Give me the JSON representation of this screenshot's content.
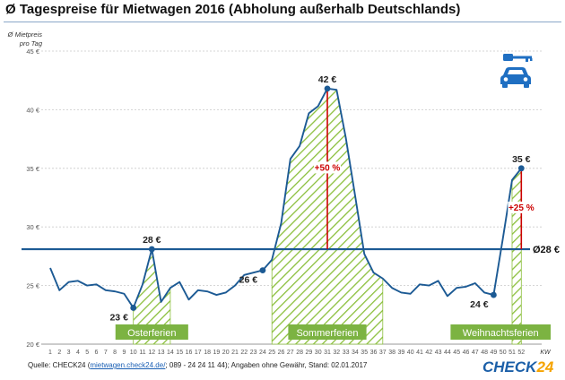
{
  "title": "Ø Tagespreise für Mietwagen 2016 (Abholung außerhalb Deutschlands)",
  "source": {
    "prefix": "Quelle: CHECK24 (",
    "link": "mietwagen.check24.de/",
    "suffix": "; 089 - 24 24 11 44); Angaben ohne Gewähr, Stand: 02.01.2017"
  },
  "brand": {
    "name": "CHECK",
    "suffix": "24"
  },
  "icons": [
    "car-key-icon"
  ],
  "colors": {
    "line": "#1c5a94",
    "avg": "#1c5a94",
    "hatch": "#8bbf3c",
    "label_bg": "#7cb342",
    "change": "#cc0000"
  },
  "chart_data": {
    "type": "line",
    "title": "Ø Tagespreise für Mietwagen 2016 (Abholung außerhalb Deutschlands)",
    "ylabel": "Ø Mietpreis pro Tag",
    "xlabel": "KW",
    "ylim": [
      20,
      45
    ],
    "yticks": [
      20,
      25,
      30,
      35,
      40,
      45
    ],
    "ytick_labels": [
      "20 €",
      "25 €",
      "30 €",
      "35 €",
      "40 €",
      "45 €"
    ],
    "grid": "horizontal",
    "x": [
      1,
      2,
      3,
      4,
      5,
      6,
      7,
      8,
      9,
      10,
      11,
      12,
      13,
      14,
      15,
      16,
      17,
      18,
      19,
      20,
      21,
      22,
      23,
      24,
      25,
      26,
      27,
      28,
      29,
      30,
      31,
      32,
      33,
      34,
      35,
      36,
      37,
      38,
      39,
      40,
      41,
      42,
      43,
      44,
      45,
      46,
      47,
      48,
      49,
      50,
      51,
      52
    ],
    "series": [
      {
        "values": [
          26.5,
          24.6,
          25.3,
          25.4,
          25.0,
          25.1,
          24.6,
          24.5,
          24.3,
          23.1,
          25.1,
          28.1,
          23.6,
          24.8,
          25.3,
          23.8,
          24.6,
          24.5,
          24.2,
          24.4,
          25.0,
          25.9,
          26.1,
          26.3,
          27.2,
          30.3,
          35.8,
          36.9,
          39.7,
          40.3,
          41.8,
          41.7,
          37.6,
          32.7,
          27.7,
          26.1,
          25.6,
          24.8,
          24.4,
          24.3,
          25.1,
          25.0,
          25.4,
          24.1,
          24.8,
          24.9,
          25.2,
          24.4,
          24.2,
          29.0,
          34.0,
          35.0
        ]
      }
    ],
    "average": {
      "value": 28.1,
      "label": "Ø28 €"
    },
    "annotations": [
      {
        "kw": 10,
        "value": 23.1,
        "label": "23 €"
      },
      {
        "kw": 12,
        "value": 28.1,
        "label": "28 €"
      },
      {
        "kw": 24,
        "value": 26.3,
        "label": "26 €"
      },
      {
        "kw": 31,
        "value": 41.8,
        "label": "42 €"
      },
      {
        "kw": 49,
        "value": 24.2,
        "label": "24 €"
      },
      {
        "kw": 52,
        "value": 35.0,
        "label": "35 €"
      }
    ],
    "changes": [
      {
        "kw": 31,
        "from": 28.1,
        "to": 41.8,
        "label": "+50 %"
      },
      {
        "kw": 52,
        "from": 28.1,
        "to": 35.0,
        "label": "+25 %"
      }
    ],
    "holidays": [
      {
        "label": "Osterferien",
        "from": 10,
        "to": 14
      },
      {
        "label": "Sommerferien",
        "from": 25,
        "to": 37
      },
      {
        "label": "Weihnachtsferien",
        "from": 51,
        "to": 52
      }
    ]
  }
}
